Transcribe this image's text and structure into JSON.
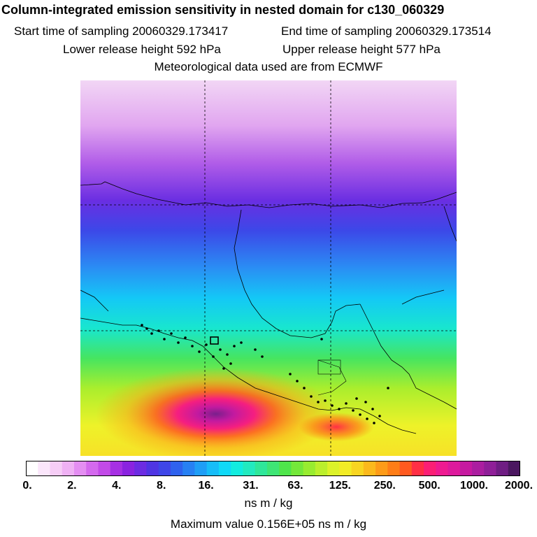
{
  "header": {
    "title": "Column-integrated emission sensitivity in nested domain for c130_060329",
    "start_time": "Start time of sampling 20060329.173417",
    "end_time": "End time of sampling 20060329.173514",
    "lower_release": "Lower release height  592 hPa",
    "upper_release": "Upper release height  577 hPa",
    "met_data": "Meteorological data used are from ECMWF"
  },
  "colorbar": {
    "tick_labels": [
      "0.",
      "2.",
      "4.",
      "8.",
      "16.",
      "31.",
      "63.",
      "125.",
      "250.",
      "500.",
      "1000.",
      "2000."
    ],
    "colors": [
      "#ffffff",
      "#fbe6fb",
      "#f6cdf6",
      "#efb1f4",
      "#e48ef2",
      "#d469ee",
      "#c24ae8",
      "#a630e3",
      "#8a23e0",
      "#6c2ce2",
      "#4f35e3",
      "#3f46e8",
      "#2f62ee",
      "#2780f3",
      "#1f9ef6",
      "#17bdf8",
      "#10d9f7",
      "#12ecdf",
      "#22eabf",
      "#2fe79a",
      "#3ee575",
      "#4fe54b",
      "#74e83a",
      "#98ec30",
      "#bbef2c",
      "#dcf229",
      "#f2ec26",
      "#f8d521",
      "#fbb91c",
      "#fd9b18",
      "#fe7d17",
      "#ff5a20",
      "#ff2f45",
      "#fb1f75",
      "#ee1b91",
      "#dd1a9c",
      "#c61aa0",
      "#ab1ea0",
      "#8f1f98",
      "#6f1d83",
      "#4b1760"
    ],
    "units": "ns m / kg",
    "max_value": "Maximum value  0.156E+05 ns m / kg"
  },
  "map": {
    "field": "column-integrated emission sensitivity",
    "gridlines": "dashed"
  }
}
